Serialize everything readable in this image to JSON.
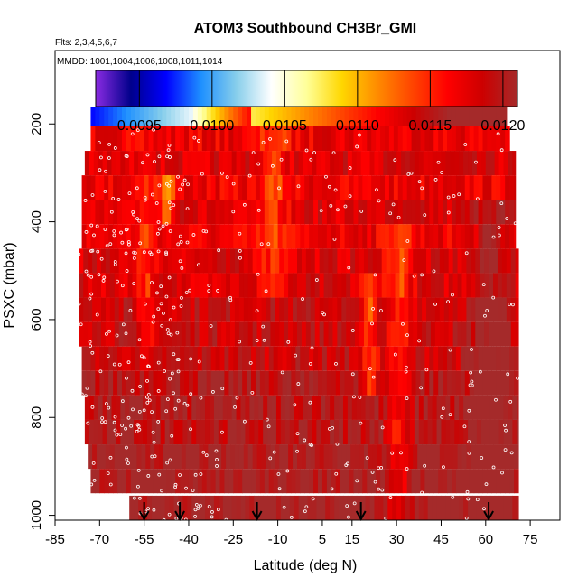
{
  "chart_data": {
    "type": "heatmap",
    "title": "ATOM3 Southbound CH3Br_GMI",
    "flights_note": "Flts: 2,3,4,5,6,7",
    "dates_note": "MMDD: 1001,1004,1006,1008,1011,1014",
    "xlabel": "Latitude (deg N)",
    "ylabel": "PSXC (mbar)",
    "xlim": [
      -85,
      85
    ],
    "ylim": [
      1010,
      50
    ],
    "y_reversed": true,
    "x_ticks": [
      -85,
      -70,
      -55,
      -40,
      -25,
      -10,
      5,
      15,
      30,
      45,
      60,
      75
    ],
    "x_tick_labels": [
      "-85",
      "-70",
      "-55",
      "-40",
      "-25",
      "-10",
      "5",
      "15",
      "30",
      "45",
      "60",
      "75"
    ],
    "y_ticks": [
      200,
      400,
      600,
      800,
      1000
    ],
    "y_tick_labels": [
      "200",
      "400",
      "600",
      "800",
      "1000"
    ],
    "colorbar": {
      "min": 0.0092,
      "max": 0.0121,
      "ticks": [
        0.0095,
        0.01,
        0.0105,
        0.011,
        0.0115,
        0.012
      ],
      "tick_labels": [
        "0.0095",
        "0.0100",
        "0.0105",
        "0.0110",
        "0.0115",
        "0.0120"
      ],
      "colors": [
        "#8a2be2",
        "#00008b",
        "#0000ff",
        "#1e90ff",
        "#87ceeb",
        "#ffffff",
        "#ffff99",
        "#ffd700",
        "#ff8c00",
        "#ff4500",
        "#ff0000",
        "#cd0000",
        "#a52a2a"
      ]
    },
    "pressure_levels": [
      180,
      230,
      280,
      330,
      380,
      430,
      480,
      530,
      580,
      630,
      680,
      730,
      780,
      830,
      880,
      930,
      985
    ],
    "latitude_extent": {
      "west_edge": [
        -73,
        -73,
        -75,
        -76,
        -76,
        -76,
        -77,
        -77,
        -77,
        -77,
        -76,
        -76,
        -75,
        -75,
        -74,
        -73,
        -60
      ],
      "east_edge": [
        67,
        68,
        70,
        70,
        70,
        70,
        71,
        71,
        71,
        71,
        71,
        71,
        71,
        71,
        71,
        71,
        71
      ]
    },
    "profile_arrows_latitude": [
      -55,
      -43,
      -17,
      18,
      61
    ],
    "series": [
      {
        "values": [
          0.0116,
          0.0117,
          0.0118,
          0.0117,
          0.0118,
          0.0117,
          0.0118,
          0.0118,
          0.0119,
          0.0119,
          0.0119,
          0.012,
          0.012,
          0.012,
          0.0121,
          0.0121,
          0.0121
        ]
      }
    ]
  }
}
